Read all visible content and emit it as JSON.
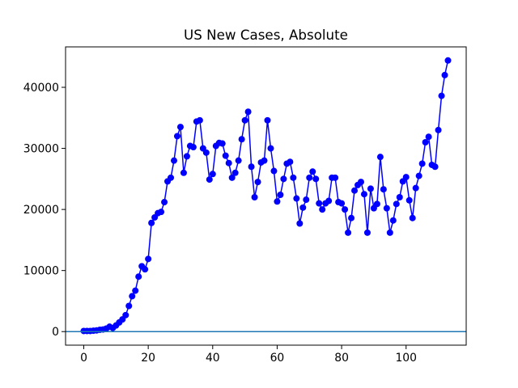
{
  "chart_data": {
    "type": "line",
    "title": "US New Cases, Absolute",
    "x": [
      0,
      1,
      2,
      3,
      4,
      5,
      6,
      7,
      8,
      9,
      10,
      11,
      12,
      13,
      14,
      15,
      16,
      17,
      18,
      19,
      20,
      21,
      22,
      23,
      24,
      25,
      26,
      27,
      28,
      29,
      30,
      31,
      32,
      33,
      34,
      35,
      36,
      37,
      38,
      39,
      40,
      41,
      42,
      43,
      44,
      45,
      46,
      47,
      48,
      49,
      50,
      51,
      52,
      53,
      54,
      55,
      56,
      57,
      58,
      59,
      60,
      61,
      62,
      63,
      64,
      65,
      66,
      67,
      68,
      69,
      70,
      71,
      72,
      73,
      74,
      75,
      76,
      77,
      78,
      79,
      80,
      81,
      82,
      83,
      84,
      85,
      86,
      87,
      88,
      89,
      90,
      91,
      92,
      93,
      94,
      95,
      96,
      97,
      98,
      99,
      100,
      101,
      102,
      103,
      104,
      105,
      106,
      107,
      108,
      109,
      110,
      111,
      112,
      113
    ],
    "series": [
      {
        "color": "#0000ff",
        "values": [
          100,
          100,
          100,
          150,
          200,
          300,
          350,
          500,
          800,
          600,
          1000,
          1500,
          2000,
          2700,
          4200,
          5800,
          6700,
          9000,
          10700,
          10200,
          11900,
          17800,
          18700,
          19400,
          19600,
          21200,
          24600,
          25200,
          28000,
          32000,
          33500,
          26000,
          28700,
          30400,
          30200,
          34400,
          34600,
          30000,
          29300,
          24900,
          25800,
          30400,
          30900,
          30800,
          28800,
          27600,
          25200,
          26000,
          28000,
          31500,
          34600,
          36000,
          27000,
          22000,
          24500,
          27700,
          28000,
          34600,
          30000,
          26300,
          21300,
          22400,
          25000,
          27500,
          27800,
          25200,
          21800,
          17700,
          20300,
          21600,
          25200,
          26200,
          25000,
          21000,
          20000,
          21000,
          21400,
          25200,
          25200,
          21200,
          21000,
          20000,
          16200,
          18600,
          23100,
          24000,
          24500,
          22500,
          16200,
          23400,
          20200,
          20900,
          28600,
          23300,
          20200,
          16200,
          18200,
          20900,
          22000,
          24600,
          25300,
          21500,
          18600,
          23500,
          25500,
          27500,
          31000,
          31900,
          27300,
          27000,
          33000,
          38600,
          42000,
          44400
        ]
      }
    ],
    "hline": {
      "value": 0,
      "color": "#1f77b4"
    },
    "xlim": [
      -5.65,
      118.65
    ],
    "xticks": [
      0,
      20,
      40,
      60,
      80,
      100
    ],
    "ylim": [
      -2220,
      46620
    ],
    "yticks": [
      0,
      10000,
      20000,
      30000,
      40000
    ]
  }
}
